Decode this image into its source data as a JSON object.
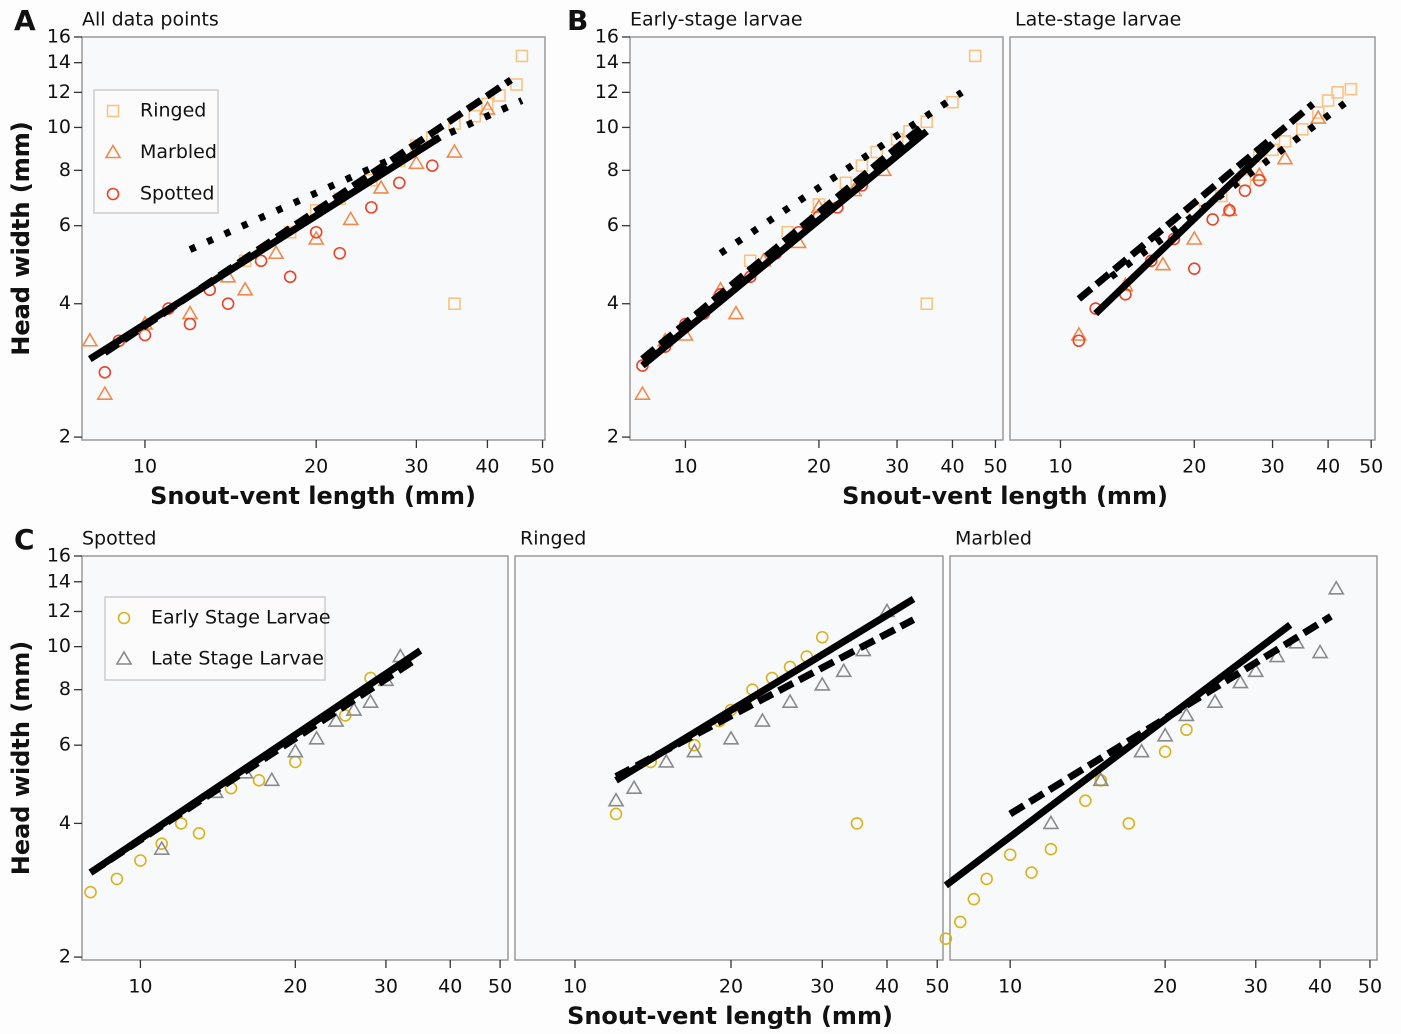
{
  "chart_data": [
    {
      "type": "scatter",
      "panel_label": "A",
      "title": "All data points",
      "ylabel": "Head width (mm)",
      "xlabel": "Snout-vent length (mm)",
      "log_x": true,
      "log_y": true,
      "legend": "upper left",
      "xlim": [
        7.75,
        50.5
      ],
      "ylim": [
        1.97,
        16
      ],
      "xticks": [
        10,
        20,
        30,
        40,
        50
      ],
      "yticks": [
        2,
        4,
        6,
        8,
        10,
        12,
        14,
        16
      ],
      "series": [
        {
          "name": "Ringed",
          "color": "#f8c483",
          "marker": "square",
          "x": [
            15,
            18,
            20,
            22,
            25,
            28,
            30,
            32,
            35,
            38,
            40,
            42,
            45,
            46,
            35
          ],
          "values": [
            5.0,
            5.8,
            6.5,
            6.9,
            7.6,
            8.4,
            9.1,
            9.5,
            10.2,
            10.6,
            11.3,
            11.8,
            12.5,
            14.5,
            4.0
          ]
        },
        {
          "name": "Marbled",
          "color": "#f08a4c",
          "marker": "triangle",
          "x": [
            8,
            8.5,
            10,
            12,
            14,
            15,
            17,
            20,
            23,
            26,
            30,
            35,
            40
          ],
          "values": [
            3.3,
            2.5,
            3.6,
            3.8,
            4.6,
            4.3,
            5.2,
            5.6,
            6.2,
            7.3,
            8.3,
            8.8,
            11
          ]
        },
        {
          "name": "Spotted",
          "color": "#e8442a",
          "marker": "circle",
          "x": [
            8.5,
            9,
            10,
            11,
            12,
            13,
            14,
            16,
            18,
            20,
            22,
            25,
            28,
            32
          ],
          "values": [
            2.8,
            3.3,
            3.4,
            3.9,
            3.6,
            4.3,
            4.0,
            5.0,
            4.6,
            5.8,
            5.2,
            6.6,
            7.5,
            8.2
          ]
        }
      ],
      "fits": [
        {
          "style": "solid",
          "x": [
            8,
            33
          ],
          "values": [
            3.0,
            9.5
          ]
        },
        {
          "style": "dashed",
          "x": [
            8.5,
            44
          ],
          "values": [
            3.1,
            12.8
          ]
        },
        {
          "style": "dotted",
          "x": [
            12,
            46
          ],
          "values": [
            5.3,
            11.5
          ]
        }
      ]
    },
    {
      "type": "scatter",
      "panel_label": "B",
      "title": "Early-stage larvae",
      "ylabel": "Head width (mm)",
      "xlabel": "Snout-vent length (mm)",
      "log_x": true,
      "log_y": true,
      "xlim": [
        7.5,
        52
      ],
      "ylim": [
        1.97,
        16
      ],
      "xticks": [
        10,
        20,
        30,
        40,
        50
      ],
      "yticks": [
        2,
        4,
        6,
        8,
        10,
        12,
        14,
        16
      ],
      "series": [
        {
          "color": "#f8c483",
          "marker": "square",
          "x": [
            14,
            17,
            20,
            23,
            25,
            27,
            30,
            32,
            35,
            40,
            45,
            35
          ],
          "values": [
            5.0,
            5.8,
            6.7,
            7.5,
            8.2,
            8.8,
            9.4,
            9.8,
            10.3,
            11.4,
            14.5,
            4.0
          ]
        },
        {
          "color": "#f08a4c",
          "marker": "triangle",
          "x": [
            8,
            9,
            10,
            12,
            13,
            15,
            18,
            20,
            24,
            28
          ],
          "values": [
            2.5,
            3.3,
            3.4,
            4.3,
            3.8,
            5.0,
            5.5,
            6.6,
            7.2,
            8.0
          ]
        },
        {
          "color": "#e8442a",
          "marker": "circle",
          "x": [
            8,
            9,
            10,
            11,
            12,
            14,
            16,
            18,
            20,
            22,
            25
          ],
          "values": [
            2.9,
            3.2,
            3.6,
            3.8,
            4.2,
            4.6,
            5.2,
            5.8,
            6.3,
            6.6,
            7.4
          ]
        }
      ],
      "fits": [
        {
          "style": "solid",
          "x": [
            8,
            35
          ],
          "values": [
            2.9,
            9.8
          ]
        },
        {
          "style": "dashed",
          "x": [
            8,
            34
          ],
          "values": [
            3.0,
            10.0
          ]
        },
        {
          "style": "dotted",
          "x": [
            12,
            42
          ],
          "values": [
            5.2,
            12.0
          ]
        }
      ]
    },
    {
      "type": "scatter",
      "title": "Late-stage larvae",
      "log_x": true,
      "log_y": true,
      "xlim": [
        7.7,
        51
      ],
      "ylim": [
        1.97,
        16
      ],
      "xticks": [
        10,
        20,
        30,
        40,
        50
      ],
      "series": [
        {
          "color": "#f8c483",
          "marker": "square",
          "x": [
            20,
            23,
            26,
            28,
            30,
            32,
            35,
            38,
            40,
            42,
            45
          ],
          "values": [
            6.5,
            7.0,
            7.6,
            8.6,
            8.9,
            9.3,
            9.9,
            10.8,
            11.5,
            12.0,
            12.2
          ]
        },
        {
          "color": "#f08a4c",
          "marker": "triangle",
          "x": [
            11,
            14,
            17,
            20,
            24,
            28,
            32,
            38
          ],
          "values": [
            3.4,
            4.4,
            4.9,
            5.6,
            6.5,
            7.8,
            8.5,
            10.5
          ]
        },
        {
          "color": "#e8442a",
          "marker": "circle",
          "x": [
            11,
            12,
            14,
            16,
            18,
            20,
            22,
            24,
            26,
            28
          ],
          "values": [
            3.3,
            3.9,
            4.2,
            5.0,
            5.6,
            4.8,
            6.2,
            6.5,
            7.2,
            7.6
          ]
        }
      ],
      "fits": [
        {
          "style": "solid",
          "x": [
            12,
            30
          ],
          "values": [
            3.8,
            9.2
          ]
        },
        {
          "style": "dashed",
          "x": [
            11,
            37
          ],
          "values": [
            4.1,
            11.3
          ]
        },
        {
          "style": "dotted",
          "x": [
            13,
            46
          ],
          "values": [
            4.6,
            11.8
          ]
        }
      ]
    },
    {
      "type": "scatter",
      "panel_label": "C",
      "title": "Spotted",
      "ylabel": "Head width (mm)",
      "log_x": true,
      "log_y": true,
      "legend": "upper left",
      "xlim": [
        7.7,
        51.8
      ],
      "ylim": [
        1.97,
        16
      ],
      "xticks": [
        10,
        20,
        30,
        40,
        50
      ],
      "yticks": [
        2,
        4,
        6,
        8,
        10,
        12,
        14,
        16
      ],
      "series": [
        {
          "name": "Early Stage Larvae",
          "color": "#d8b41c",
          "marker": "circle",
          "x": [
            8,
            9,
            10,
            11,
            12,
            13,
            15,
            17,
            20,
            25,
            28
          ],
          "values": [
            2.8,
            3.0,
            3.3,
            3.6,
            4.0,
            3.8,
            4.8,
            5.0,
            5.5,
            7.0,
            8.5
          ]
        },
        {
          "name": "Late Stage Larvae",
          "color": "#8a8a8a",
          "marker": "triangle",
          "x": [
            11,
            14,
            16,
            18,
            20,
            22,
            24,
            26,
            28,
            30,
            32
          ],
          "values": [
            3.5,
            4.7,
            5.2,
            5.0,
            5.8,
            6.2,
            6.8,
            7.2,
            7.5,
            8.4,
            9.5
          ]
        }
      ],
      "fits": [
        {
          "style": "solid",
          "x": [
            8,
            35
          ],
          "values": [
            3.1,
            9.8
          ]
        },
        {
          "style": "dashed",
          "x": [
            8,
            34
          ],
          "values": [
            3.1,
            9.3
          ]
        }
      ]
    },
    {
      "type": "scatter",
      "title": "Ringed",
      "xlabel": "Snout-vent length (mm)",
      "log_x": true,
      "log_y": true,
      "xlim": [
        7.66,
        51.3
      ],
      "ylim": [
        1.97,
        16
      ],
      "xticks": [
        10,
        20,
        30,
        40,
        50
      ],
      "series": [
        {
          "color": "#d8b41c",
          "marker": "circle",
          "x": [
            12,
            14,
            17,
            19,
            20,
            22,
            24,
            26,
            28,
            30,
            35
          ],
          "values": [
            4.2,
            5.5,
            6.0,
            6.8,
            7.2,
            8.0,
            8.5,
            9.0,
            9.5,
            10.5,
            4.0
          ]
        },
        {
          "color": "#8a8a8a",
          "marker": "triangle",
          "x": [
            12,
            13,
            15,
            17,
            20,
            23,
            26,
            30,
            33,
            36,
            40
          ],
          "values": [
            4.5,
            4.8,
            5.5,
            5.8,
            6.2,
            6.8,
            7.5,
            8.2,
            8.8,
            9.8,
            12.0
          ]
        }
      ],
      "fits": [
        {
          "style": "solid",
          "x": [
            12,
            45
          ],
          "values": [
            5.0,
            12.8
          ]
        },
        {
          "style": "dashed",
          "x": [
            12,
            45
          ],
          "values": [
            5.1,
            11.5
          ]
        }
      ]
    },
    {
      "type": "scatter",
      "title": "Marbled",
      "log_x": true,
      "log_y": true,
      "xlim": [
        7.64,
        51.6
      ],
      "ylim": [
        1.97,
        16
      ],
      "xticks": [
        10,
        20,
        30,
        40,
        50
      ],
      "series": [
        {
          "color": "#d8b41c",
          "marker": "circle",
          "x": [
            7.5,
            8,
            8.5,
            9,
            10,
            11,
            12,
            14,
            15,
            17,
            20,
            22
          ],
          "values": [
            2.2,
            2.4,
            2.7,
            3.0,
            3.4,
            3.1,
            3.5,
            4.5,
            5.0,
            4.0,
            5.8,
            6.5
          ]
        },
        {
          "color": "#8a8a8a",
          "marker": "triangle",
          "x": [
            12,
            15,
            18,
            20,
            22,
            25,
            28,
            30,
            33,
            36,
            40,
            43
          ],
          "values": [
            4.0,
            5.0,
            5.8,
            6.3,
            7.0,
            7.5,
            8.3,
            8.8,
            9.5,
            10.2,
            9.7,
            13.5
          ]
        }
      ],
      "fits": [
        {
          "style": "solid",
          "x": [
            7.5,
            35
          ],
          "values": [
            2.9,
            11.2
          ]
        },
        {
          "style": "dashed",
          "x": [
            10,
            42
          ],
          "values": [
            4.2,
            11.7
          ]
        }
      ]
    }
  ]
}
